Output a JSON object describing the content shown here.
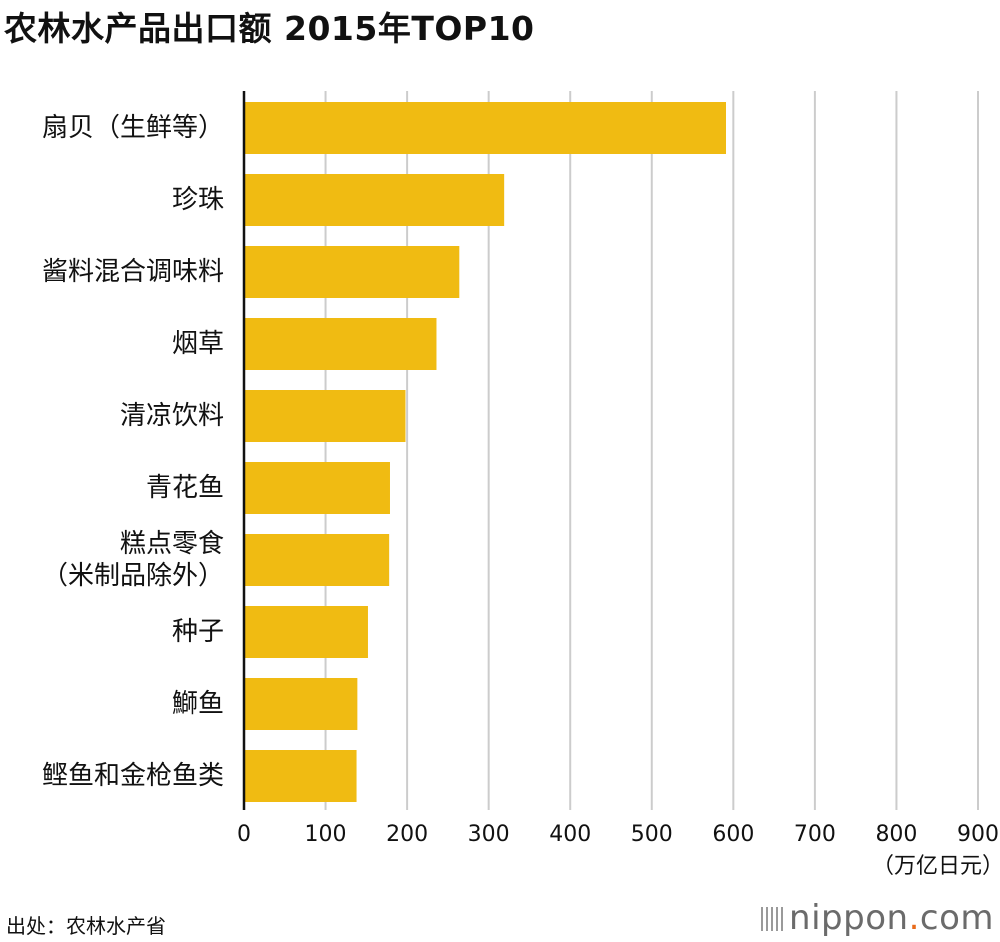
{
  "chart_data": {
    "type": "bar",
    "orientation": "horizontal",
    "title": "农林水产品出口额 2015年TOP10",
    "categories": [
      [
        "扇贝（生鲜等）"
      ],
      [
        "珍珠"
      ],
      [
        "酱料混合调味料"
      ],
      [
        "烟草"
      ],
      [
        "清凉饮料"
      ],
      [
        "青花鱼"
      ],
      [
        "糕点零食",
        "（米制品除外）"
      ],
      [
        "种子"
      ],
      [
        "鰤鱼"
      ],
      [
        "鲣鱼和金枪鱼类"
      ]
    ],
    "values": [
      591,
      319,
      264,
      236,
      198,
      179,
      178,
      152,
      139,
      138
    ],
    "xlim": [
      0,
      900
    ],
    "xticks": [
      0,
      100,
      200,
      300,
      400,
      500,
      600,
      700,
      800,
      900
    ],
    "unit_label": "（万亿日元）",
    "grid": true,
    "bar_color": "#f0bb12",
    "grid_color": "#cccccc",
    "axis_color": "#111111"
  },
  "footer": {
    "source": "出处：农林水产省",
    "brand_name": "nippon",
    "brand_dot": ".",
    "brand_tld": "com"
  }
}
